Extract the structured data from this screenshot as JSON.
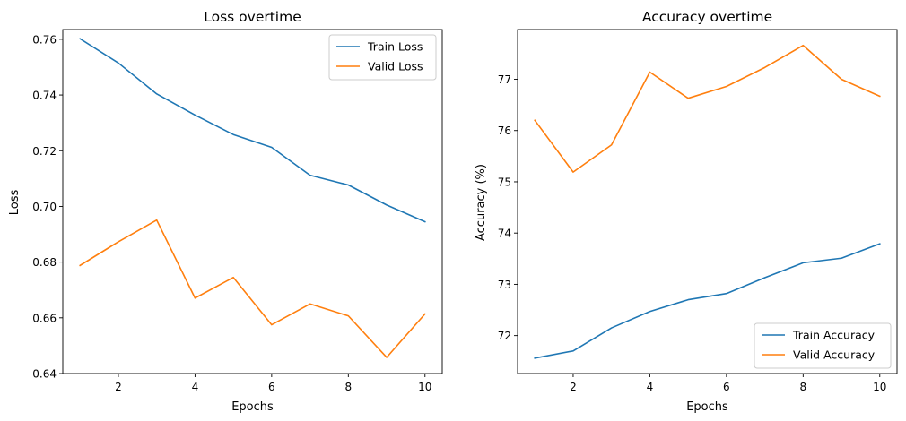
{
  "chart_data": [
    {
      "type": "line",
      "title": "Loss overtime",
      "xlabel": "Epochs",
      "ylabel": "Loss",
      "x": [
        1,
        2,
        3,
        4,
        5,
        6,
        7,
        8,
        9,
        10
      ],
      "xlim": [
        0.55,
        10.45
      ],
      "ylim": [
        0.64,
        0.7635
      ],
      "xticks": [
        2,
        4,
        6,
        8,
        10
      ],
      "yticks": [
        0.64,
        0.66,
        0.68,
        0.7,
        0.72,
        0.74,
        0.76
      ],
      "ytick_decimals": 2,
      "grid": false,
      "legend_position": "top-right",
      "series": [
        {
          "name": "Train Loss",
          "color": "#1f77b4",
          "values": [
            0.7602,
            0.7515,
            0.7404,
            0.7328,
            0.7258,
            0.7212,
            0.7112,
            0.7077,
            0.7005,
            0.6945
          ]
        },
        {
          "name": "Valid Loss",
          "color": "#ff7f0e",
          "values": [
            0.6788,
            0.6873,
            0.6951,
            0.6671,
            0.6745,
            0.6575,
            0.665,
            0.6607,
            0.6458,
            0.6614
          ]
        }
      ]
    },
    {
      "type": "line",
      "title": "Accuracy overtime",
      "xlabel": "Epochs",
      "ylabel": "Accuracy (%)",
      "x": [
        1,
        2,
        3,
        4,
        5,
        6,
        7,
        8,
        9,
        10
      ],
      "xlim": [
        0.55,
        10.45
      ],
      "ylim": [
        71.26,
        77.97
      ],
      "xticks": [
        2,
        4,
        6,
        8,
        10
      ],
      "yticks": [
        72,
        73,
        74,
        75,
        76,
        77
      ],
      "ytick_decimals": 0,
      "grid": false,
      "legend_position": "bottom-right",
      "series": [
        {
          "name": "Train Accuracy",
          "color": "#1f77b4",
          "values": [
            71.56,
            71.7,
            72.15,
            72.47,
            72.7,
            72.82,
            73.13,
            73.42,
            73.51,
            73.79
          ]
        },
        {
          "name": "Valid Accuracy",
          "color": "#ff7f0e",
          "values": [
            76.2,
            75.19,
            75.72,
            77.14,
            76.63,
            76.86,
            77.23,
            77.66,
            77.0,
            76.67
          ]
        }
      ]
    }
  ]
}
